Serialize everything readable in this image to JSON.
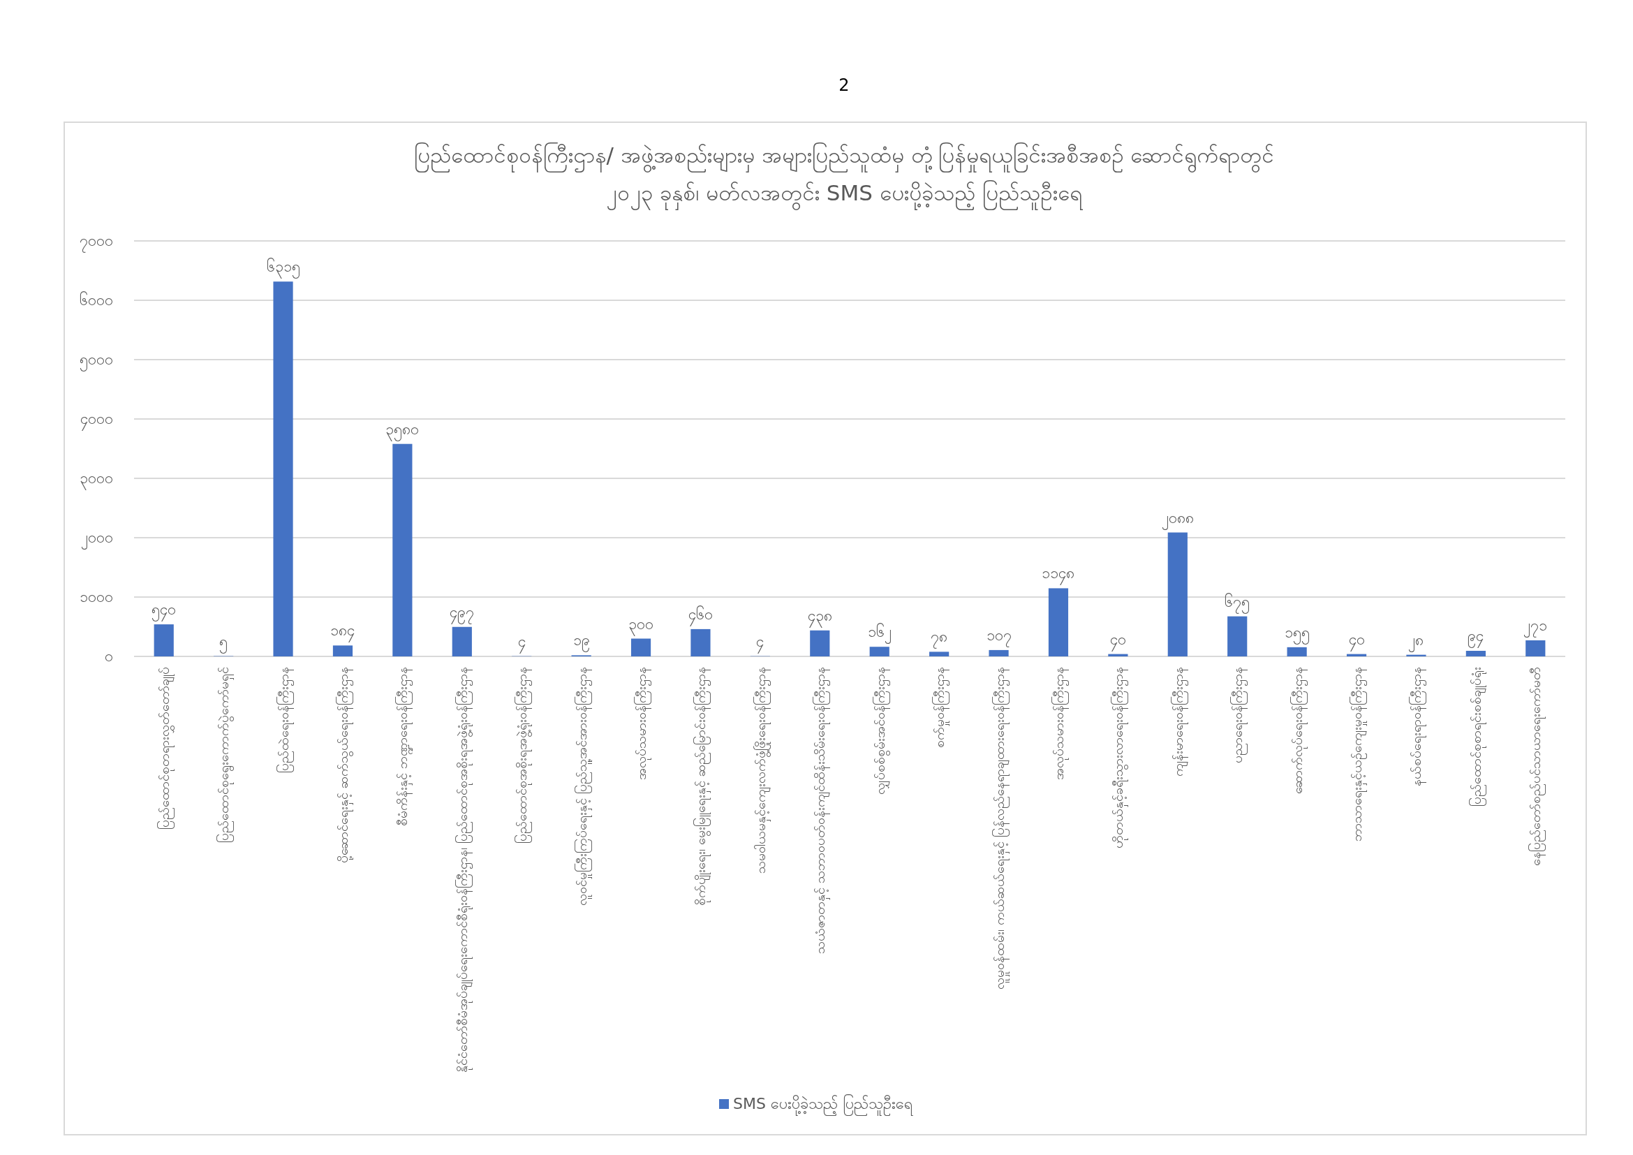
{
  "chart_data": {
    "type": "bar",
    "title": "ပြည်ထောင်စုဝန်ကြီးဌာန/ အဖွဲ့အစည်းများမှ အများပြည်သူထံမှ တုံ့ပြန်မှုရယူခြင်းအစီအစဉ် ဆောင်ရွက်ရာတွင်",
    "subtitle": "၂၀၂၃ ခုနှစ်၊ မတ်လအတွင်း SMS ပေးပို့ခဲ့သည့် ပြည်သူဦးရေ",
    "annotations": [
      "2"
    ],
    "categories": [
      "ပြည်ထောင်စုတရားလွှတ်တော်ချုပ်",
      "ပြည်ထောင်စုရွေးကောက်ပွဲကော်မရှင်",
      "ပြည်ထဲရေးဝန်ကြီးဌာန",
      "ပို့ဆောင်ရေးနှင့် ဆက်သွယ်ရေးဝန်ကြီးဌာန",
      "စီမံကိန်းနှင့် ဘဏ္ဍာရေးဝန်ကြီးဌာန",
      "နိုင်ငံတော်စီမံအုပ်ချုပ်ရေးကောင်စီရုံးဝန်ကြီးဌာန၊ ပြည်ထောင်စုအစိုးရအဖွဲ့ရုံးဝန်ကြီးဌာန",
      "ပြည်ထောင်စုအစိုးရအဖွဲ့ရုံးဝန်ကြီးဌာန",
      "လူဝင်မှုကြီးကြပ်ရေးနှင့် ပြည်သူ့အင်အားဝန်ကြီးဌာန",
      "အလုပ်သမားဝန်ကြီးဌာန",
      "စိုက်ပျိုးရေး၊ မွေးမြူရေးနှင့် ဆည်မြောင်းဝန်ကြီးဌာန",
      "သမဝါယမနှင့်ကျေးလက်ဖွံ့ဖြိုးရေးဝန်ကြီးဌာန",
      "သယံဇာတနှင့် သဘာဝပတ်ဝန်းကျင်ထိန်းသိမ်းရေးဝန်ကြီးဌာန",
      "လျှပ်စစ်စွမ်းအင်ဝန်ကြီးဌာန",
      "စက်မှုဝန်ကြီးဌာန",
      "လူမှုဝန်ထမ်း၊ ကယ်ဆယ်ရေးနှင့် ပြန်လည်နေရာချထားရေးဝန်ကြီးဌာန",
      "အလုပ်သမားဝန်ကြီးဌာန",
      "ဟိုတယ်နှင့်ခရီးသွားလာရေးဝန်ကြီးဌာန",
      "ကျန်းမာရေးဝန်ကြီးဌာန",
      "ပညာရေးဝန်ကြီးဌာန",
      "ဆောက်လုပ်ရေးဝန်ကြီးဌာန",
      "ဘာသာရေးနှင့်ယဉ်ကျေးမှုဝန်ကြီးဌာန",
      "နယ်စပ်ရေးရာဝန်ကြီးဌာန",
      "ပြည်ထောင်စုစာရင်းစစ်ချုပ်ရုံး",
      "နေပြည်တော်စည်ပင်သာယာရေးကော်မတီ"
    ],
    "series": [
      {
        "name": "SMS ပေးပို့ခဲ့သည့် ပြည်သူဦးရေ",
        "color": "#4472c4",
        "values": [
          540,
          5,
          6315,
          184,
          3580,
          497,
          4,
          19,
          300,
          460,
          4,
          438,
          162,
          78,
          107,
          1148,
          40,
          2088,
          675,
          155,
          40,
          28,
          94,
          271
        ],
        "value_labels": [
          "၅၄၀",
          "၅",
          "၆၃၁၅",
          "၁၈၄",
          "၃၅၈၀",
          "၄၉၇",
          "၄",
          "၁၉",
          "၃၀၀",
          "၄၆၀",
          "၄",
          "၄၃၈",
          "၁၆၂",
          "၇၈",
          "၁၀၇",
          "၁၁၄၈",
          "၄၀",
          "၂၀၈၈",
          "၆၇၅",
          "၁၅၅",
          "၄၀",
          "၂၈",
          "၉၄",
          "၂၇၁"
        ]
      }
    ],
    "ylim": [
      0,
      7000
    ],
    "yticks": [
      {
        "value": 0,
        "label": "၀"
      },
      {
        "value": 1000,
        "label": "၁၀၀၀"
      },
      {
        "value": 2000,
        "label": "၂၀၀၀"
      },
      {
        "value": 3000,
        "label": "၃၀၀၀"
      },
      {
        "value": 4000,
        "label": "၄၀၀၀"
      },
      {
        "value": 5000,
        "label": "၅၀၀၀"
      },
      {
        "value": 6000,
        "label": "၆၀၀၀"
      },
      {
        "value": 7000,
        "label": "၇၀၀၀"
      }
    ],
    "grid": "y",
    "legend": "bottom"
  }
}
